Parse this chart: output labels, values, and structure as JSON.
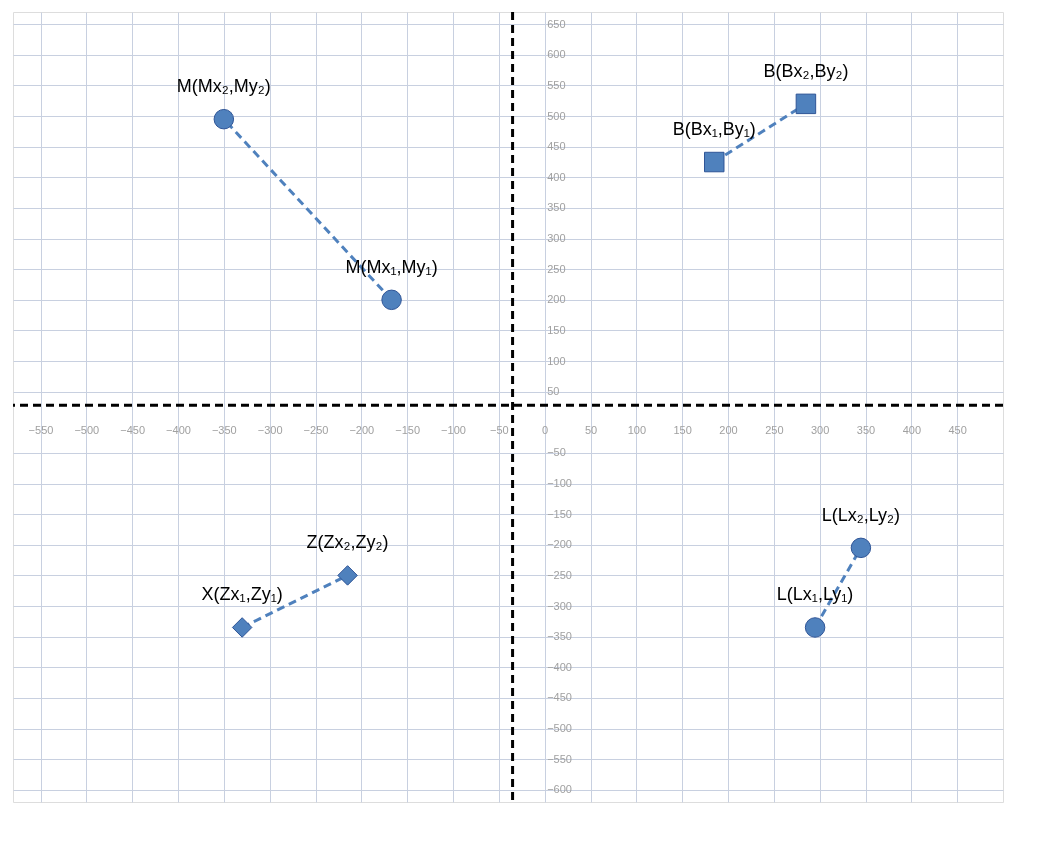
{
  "chart_data": {
    "type": "line",
    "xlim": [
      -580,
      500
    ],
    "ylim": [
      -620,
      670
    ],
    "xticks": [
      -550,
      -500,
      -450,
      -400,
      -350,
      -300,
      -250,
      -200,
      -150,
      -100,
      -50,
      0,
      50,
      100,
      150,
      200,
      250,
      300,
      350,
      400,
      450
    ],
    "yticks": [
      650,
      600,
      550,
      500,
      450,
      400,
      350,
      300,
      250,
      200,
      150,
      100,
      50,
      -50,
      -100,
      -150,
      -200,
      -250,
      -300,
      -350,
      -400,
      -450,
      -500,
      -550,
      -600
    ],
    "grid": true,
    "line_style": "dashed",
    "series": [
      {
        "color": "#4f81bd",
        "marker": "circle",
        "x": [
          -167,
          -350
        ],
        "values": [
          200,
          495
        ]
      },
      {
        "color": "#4f81bd",
        "marker": "square",
        "x": [
          185,
          285
        ],
        "values": [
          425,
          520
        ]
      },
      {
        "color": "#4f81bd",
        "marker": "diamond",
        "x": [
          -330,
          -215
        ],
        "values": [
          -335,
          -250
        ]
      },
      {
        "color": "#4f81bd",
        "marker": "circle",
        "x": [
          295,
          345
        ],
        "values": [
          -335,
          -205
        ]
      }
    ],
    "ref_lines": [
      {
        "axis": "x",
        "value": -35,
        "line_style": "dashed",
        "color": "#000000"
      },
      {
        "axis": "y",
        "value": 28,
        "line_style": "dashed",
        "color": "#000000"
      }
    ],
    "annotations": [
      {
        "text": "M(Mx₁,My₁)",
        "x": -167,
        "y": 200
      },
      {
        "text": "M(Mx₂,My₂)",
        "x": -350,
        "y": 495
      },
      {
        "text": "B(Bx₁,By₁)",
        "x": 185,
        "y": 425
      },
      {
        "text": "B(Bx₂,By₂)",
        "x": 285,
        "y": 520
      },
      {
        "text": "X(Zx₁,Zy₁)",
        "x": -330,
        "y": -335
      },
      {
        "text": "Z(Zx₂,Zy₂)",
        "x": -215,
        "y": -250
      },
      {
        "text": "L(Lx₁,Ly₁)",
        "x": 295,
        "y": -335
      },
      {
        "text": "L(Lx₂,Ly₂)",
        "x": 345,
        "y": -205
      }
    ]
  }
}
